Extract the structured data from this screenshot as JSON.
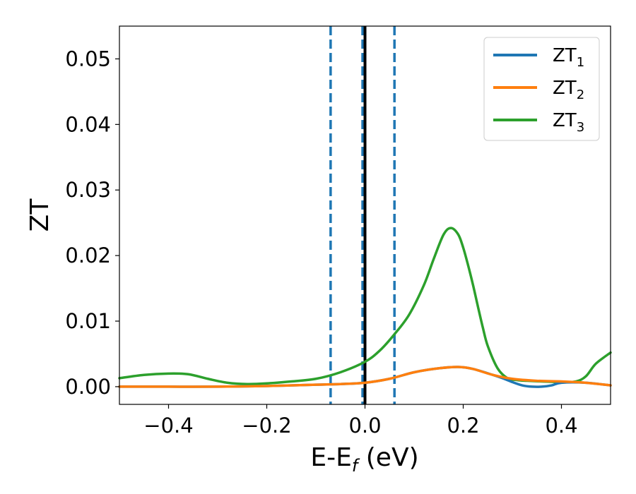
{
  "chart_data": {
    "type": "line",
    "xlabel": "E-E_f (eV)",
    "ylabel": "ZT",
    "xlim": [
      -0.5,
      0.5
    ],
    "ylim": [
      -0.0027,
      0.055
    ],
    "xticks": [
      -0.4,
      -0.2,
      0.0,
      0.2,
      0.4
    ],
    "xtick_labels": [
      "−0.4",
      "−0.2",
      "0.0",
      "0.2",
      "0.4"
    ],
    "yticks": [
      0.0,
      0.01,
      0.02,
      0.03,
      0.04,
      0.05
    ],
    "ytick_labels": [
      "0.00",
      "0.01",
      "0.02",
      "0.03",
      "0.04",
      "0.05"
    ],
    "grid": false,
    "legend_position": "top-right",
    "vlines": [
      {
        "x": -0.07,
        "style": "dashed",
        "color": "#1f77b4"
      },
      {
        "x": -0.005,
        "style": "dashed",
        "color": "#1f77b4"
      },
      {
        "x": 0.06,
        "style": "dashed",
        "color": "#1f77b4"
      },
      {
        "x": 0.0,
        "style": "solid",
        "color": "#000000"
      }
    ],
    "series": [
      {
        "name": "ZT1",
        "label_base": "ZT",
        "label_sub": "1",
        "color": "#1f77b4",
        "x": [
          -0.5,
          -0.4,
          -0.3,
          -0.2,
          -0.1,
          -0.05,
          0.0,
          0.05,
          0.1,
          0.15,
          0.19,
          0.22,
          0.26,
          0.28,
          0.3,
          0.32,
          0.34,
          0.36,
          0.38,
          0.4,
          0.45,
          0.5
        ],
        "y": [
          0.0,
          0.0,
          0.0,
          0.0001,
          0.0003,
          0.0004,
          0.0006,
          0.0012,
          0.0022,
          0.0028,
          0.003,
          0.0027,
          0.0018,
          0.0013,
          0.0007,
          0.0002,
          0.0,
          0.0,
          0.0002,
          0.0006,
          0.0006,
          0.0002
        ]
      },
      {
        "name": "ZT2",
        "label_base": "ZT",
        "label_sub": "2",
        "color": "#ff7f0e",
        "x": [
          -0.5,
          -0.4,
          -0.3,
          -0.2,
          -0.1,
          -0.05,
          0.0,
          0.05,
          0.1,
          0.15,
          0.19,
          0.22,
          0.26,
          0.3,
          0.35,
          0.4,
          0.45,
          0.5
        ],
        "y": [
          0.0,
          0.0,
          0.0,
          0.0001,
          0.0003,
          0.0004,
          0.0006,
          0.0012,
          0.0022,
          0.0028,
          0.003,
          0.0027,
          0.0018,
          0.0012,
          0.0009,
          0.0008,
          0.0006,
          0.0002
        ]
      },
      {
        "name": "ZT3",
        "label_base": "ZT",
        "label_sub": "3",
        "color": "#2ca02c",
        "x": [
          -0.5,
          -0.45,
          -0.4,
          -0.36,
          -0.32,
          -0.28,
          -0.24,
          -0.2,
          -0.15,
          -0.1,
          -0.05,
          0.0,
          0.03,
          0.06,
          0.09,
          0.12,
          0.14,
          0.16,
          0.175,
          0.19,
          0.2,
          0.21,
          0.22,
          0.23,
          0.24,
          0.25,
          0.27,
          0.29,
          0.31,
          0.33,
          0.36,
          0.4,
          0.43,
          0.45,
          0.47,
          0.5
        ],
        "y": [
          0.0013,
          0.0018,
          0.002,
          0.0019,
          0.0012,
          0.0006,
          0.0004,
          0.0005,
          0.0008,
          0.0012,
          0.0022,
          0.0038,
          0.0055,
          0.008,
          0.011,
          0.0155,
          0.0195,
          0.0232,
          0.0242,
          0.0232,
          0.0212,
          0.0185,
          0.0155,
          0.0122,
          0.009,
          0.0062,
          0.0028,
          0.0013,
          0.001,
          0.0009,
          0.0008,
          0.0007,
          0.0008,
          0.0016,
          0.0035,
          0.0052
        ]
      }
    ]
  }
}
